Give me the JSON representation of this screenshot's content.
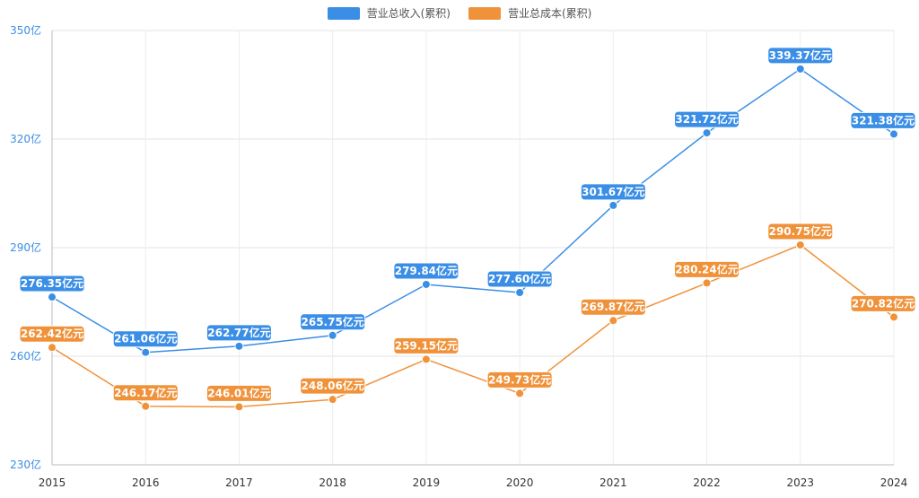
{
  "chart_data": {
    "type": "line",
    "categories": [
      "2015",
      "2016",
      "2017",
      "2018",
      "2019",
      "2020",
      "2021",
      "2022",
      "2023",
      "2024"
    ],
    "y_ticks": [
      {
        "value": 230,
        "label": "230亿"
      },
      {
        "value": 260,
        "label": "260亿"
      },
      {
        "value": 290,
        "label": "290亿"
      },
      {
        "value": 320,
        "label": "320亿"
      },
      {
        "value": 350,
        "label": "350亿"
      }
    ],
    "ylim": [
      230,
      350
    ],
    "grid": true,
    "legend_position": "top-center",
    "series": [
      {
        "name": "营业总收入(累积)",
        "color": "#3a8ee6",
        "values": [
          276.35,
          261.06,
          262.77,
          265.75,
          279.84,
          277.6,
          301.67,
          321.72,
          339.37,
          321.38
        ],
        "labels": [
          "276.35亿元",
          "261.06亿元",
          "262.77亿元",
          "265.75亿元",
          "279.84亿元",
          "277.60亿元",
          "301.67亿元",
          "321.72亿元",
          "339.37亿元",
          "321.38亿元"
        ]
      },
      {
        "name": "营业总成本(累积)",
        "color": "#f0923a",
        "values": [
          262.42,
          246.17,
          246.01,
          248.06,
          259.15,
          249.73,
          269.87,
          280.24,
          290.75,
          270.82
        ],
        "labels": [
          "262.42亿元",
          "246.17亿元",
          "246.01亿元",
          "248.06亿元",
          "259.15亿元",
          "249.73亿元",
          "269.87亿元",
          "280.24亿元",
          "290.75亿元",
          "270.82亿元"
        ]
      }
    ]
  }
}
